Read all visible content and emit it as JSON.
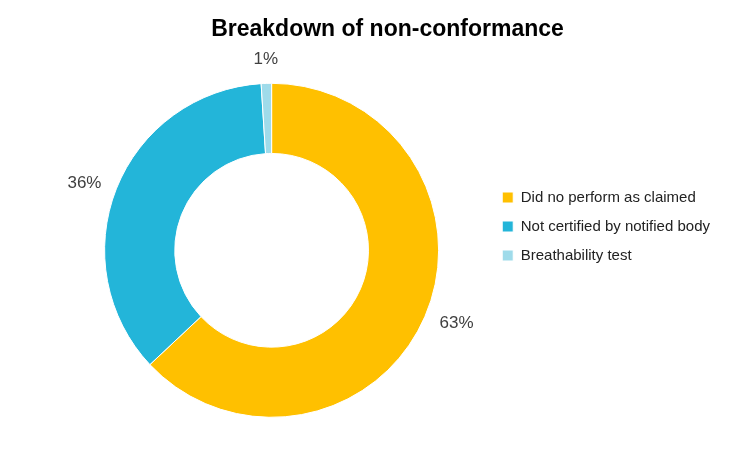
{
  "chart_data": {
    "type": "doughnut",
    "title": "Breakdown of non-conformance",
    "categories": [
      "Did no perform as claimed",
      "Not certified by notified body",
      "Breathability test"
    ],
    "values": [
      63,
      36,
      1
    ],
    "value_labels": [
      "63%",
      "36%",
      "1%"
    ],
    "colors": [
      "#ffc000",
      "#23b5d9",
      "#9fdbea"
    ],
    "legend": "right",
    "data_labels": true
  }
}
